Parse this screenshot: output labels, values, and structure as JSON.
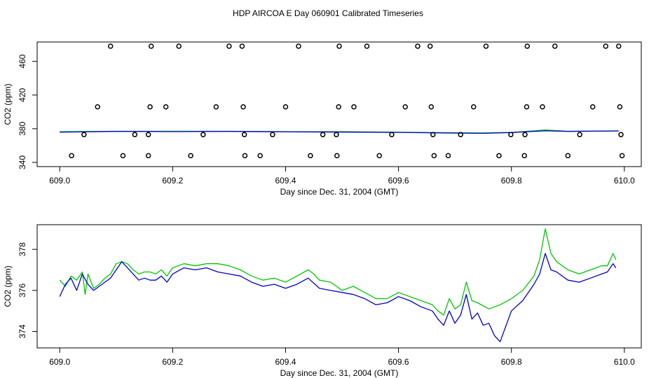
{
  "title": "HDP AIRCOA E  Day 060901  Calibrated Timeseries",
  "colors": {
    "green": "#00c800",
    "blue": "#0000d0",
    "axis": "#000000"
  },
  "chart_data": [
    {
      "type": "scatter",
      "xlabel": "Day since Dec. 31, 2004 (GMT)",
      "ylabel": "CO2 (ppm)",
      "xlim": [
        608.96,
        610.03
      ],
      "ylim": [
        335,
        483
      ],
      "xticks": [
        "609.0",
        "609.2",
        "609.4",
        "609.6",
        "609.8",
        "610.0"
      ],
      "yticks": [
        "340",
        "380",
        "420",
        "460"
      ],
      "points": [
        [
          609.09,
          478
        ],
        [
          609.162,
          478
        ],
        [
          609.211,
          478
        ],
        [
          609.3,
          478
        ],
        [
          609.323,
          478
        ],
        [
          609.423,
          478
        ],
        [
          609.495,
          478
        ],
        [
          609.544,
          478
        ],
        [
          609.634,
          478
        ],
        [
          609.656,
          478
        ],
        [
          609.755,
          478
        ],
        [
          609.828,
          478
        ],
        [
          609.877,
          478
        ],
        [
          609.967,
          478
        ],
        [
          609.99,
          478
        ],
        [
          609.067,
          406
        ],
        [
          609.16,
          406
        ],
        [
          609.188,
          406
        ],
        [
          609.277,
          406
        ],
        [
          609.325,
          406
        ],
        [
          609.4,
          406
        ],
        [
          609.494,
          406
        ],
        [
          609.521,
          406
        ],
        [
          609.612,
          406
        ],
        [
          609.658,
          406
        ],
        [
          609.733,
          406
        ],
        [
          609.827,
          406
        ],
        [
          609.855,
          406
        ],
        [
          609.944,
          406
        ],
        [
          609.992,
          406
        ],
        [
          609.043,
          373
        ],
        [
          609.133,
          373
        ],
        [
          609.157,
          373
        ],
        [
          609.254,
          373
        ],
        [
          609.327,
          373
        ],
        [
          609.377,
          373
        ],
        [
          609.466,
          373
        ],
        [
          609.49,
          373
        ],
        [
          609.588,
          373
        ],
        [
          609.661,
          373
        ],
        [
          609.71,
          373
        ],
        [
          609.799,
          373
        ],
        [
          609.824,
          373
        ],
        [
          609.921,
          373
        ],
        [
          609.994,
          373
        ],
        [
          609.021,
          348
        ],
        [
          609.112,
          348
        ],
        [
          609.157,
          348
        ],
        [
          609.232,
          348
        ],
        [
          609.328,
          348
        ],
        [
          609.355,
          348
        ],
        [
          609.444,
          348
        ],
        [
          609.491,
          348
        ],
        [
          609.566,
          348
        ],
        [
          609.663,
          348
        ],
        [
          609.688,
          348
        ],
        [
          609.778,
          348
        ],
        [
          609.823,
          348
        ],
        [
          609.9,
          348
        ],
        [
          609.996,
          348
        ]
      ],
      "series": [
        {
          "x": [
            609.0,
            609.1,
            609.2,
            609.3,
            609.4,
            609.5,
            609.6,
            609.7,
            609.75,
            609.8,
            609.86,
            609.9,
            609.99
          ],
          "values": [
            376.5,
            377.0,
            377.0,
            377.0,
            376.5,
            376.5,
            375.8,
            375.2,
            375.0,
            375.6,
            378.5,
            377.0,
            377.5
          ]
        },
        {
          "x": [
            609.0,
            609.1,
            609.2,
            609.3,
            609.4,
            609.5,
            609.6,
            609.7,
            609.75,
            609.8,
            609.86,
            609.9,
            609.99
          ],
          "values": [
            375.8,
            376.8,
            376.6,
            376.8,
            376.2,
            376.0,
            375.7,
            374.8,
            374.5,
            375.5,
            377.5,
            376.8,
            377.3
          ]
        }
      ]
    },
    {
      "type": "line",
      "xlabel": "Day since Dec. 31, 2004 (GMT)",
      "ylabel": "CO2 (ppm)",
      "xlim": [
        608.96,
        610.03
      ],
      "ylim": [
        373.2,
        379.2
      ],
      "xticks": [
        "609.0",
        "609.2",
        "609.4",
        "609.6",
        "609.8",
        "610.0"
      ],
      "yticks": [
        "374",
        "376",
        "378"
      ],
      "series": [
        {
          "x": [
            609.0,
            609.01,
            609.02,
            609.03,
            609.04,
            609.045,
            609.05,
            609.06,
            609.07,
            609.08,
            609.09,
            609.1,
            609.11,
            609.12,
            609.13,
            609.14,
            609.15,
            609.16,
            609.17,
            609.18,
            609.19,
            609.2,
            609.22,
            609.24,
            609.26,
            609.28,
            609.3,
            609.32,
            609.34,
            609.36,
            609.38,
            609.4,
            609.42,
            609.44,
            609.45,
            609.46,
            609.48,
            609.5,
            609.52,
            609.54,
            609.56,
            609.58,
            609.6,
            609.62,
            609.64,
            609.66,
            609.67,
            609.68,
            609.69,
            609.7,
            609.71,
            609.72,
            609.73,
            609.74,
            609.76,
            609.78,
            609.8,
            609.82,
            609.84,
            609.85,
            609.86,
            609.87,
            609.88,
            609.9,
            609.92,
            609.94,
            609.96,
            609.97,
            609.98,
            609.985
          ],
          "values": [
            376.5,
            376.2,
            376.7,
            376.5,
            376.9,
            375.8,
            376.8,
            376.1,
            376.3,
            376.6,
            376.8,
            377.3,
            377.4,
            377.3,
            377.0,
            376.8,
            376.9,
            376.9,
            376.8,
            377.0,
            376.7,
            377.1,
            377.3,
            377.2,
            377.3,
            377.3,
            377.2,
            377.0,
            376.7,
            376.5,
            376.6,
            376.4,
            376.7,
            377.0,
            376.8,
            376.5,
            376.4,
            376.0,
            376.2,
            375.9,
            375.6,
            375.6,
            375.9,
            375.7,
            375.5,
            375.3,
            375.0,
            374.8,
            375.6,
            375.1,
            375.3,
            376.4,
            375.5,
            375.4,
            375.1,
            375.3,
            375.6,
            376.0,
            376.7,
            377.5,
            379.0,
            377.8,
            377.4,
            377.0,
            376.8,
            377.0,
            377.2,
            377.2,
            377.8,
            377.5
          ]
        },
        {
          "x": [
            609.0,
            609.01,
            609.02,
            609.03,
            609.04,
            609.05,
            609.06,
            609.07,
            609.08,
            609.09,
            609.1,
            609.11,
            609.12,
            609.13,
            609.14,
            609.15,
            609.16,
            609.17,
            609.18,
            609.19,
            609.2,
            609.22,
            609.24,
            609.26,
            609.28,
            609.3,
            609.32,
            609.34,
            609.36,
            609.38,
            609.4,
            609.42,
            609.44,
            609.46,
            609.48,
            609.5,
            609.52,
            609.54,
            609.56,
            609.58,
            609.6,
            609.62,
            609.64,
            609.66,
            609.67,
            609.68,
            609.69,
            609.7,
            609.71,
            609.72,
            609.73,
            609.74,
            609.75,
            609.76,
            609.77,
            609.78,
            609.8,
            609.82,
            609.84,
            609.85,
            609.86,
            609.87,
            609.88,
            609.9,
            609.92,
            609.94,
            609.96,
            609.97,
            609.98,
            609.985
          ],
          "values": [
            375.7,
            376.3,
            376.6,
            376.0,
            376.8,
            376.3,
            376.0,
            376.2,
            376.4,
            376.6,
            377.0,
            377.4,
            377.1,
            376.8,
            376.5,
            376.6,
            376.5,
            376.5,
            376.7,
            376.4,
            376.8,
            377.1,
            377.0,
            377.1,
            376.9,
            376.8,
            376.7,
            376.4,
            376.2,
            376.3,
            376.1,
            376.3,
            376.6,
            376.1,
            376.0,
            375.9,
            375.8,
            375.6,
            375.3,
            375.4,
            375.7,
            375.5,
            375.2,
            375.0,
            374.6,
            374.3,
            375.0,
            374.4,
            374.8,
            375.8,
            374.6,
            374.9,
            374.3,
            374.4,
            373.8,
            373.5,
            375.0,
            375.5,
            376.3,
            376.8,
            377.8,
            377.0,
            376.9,
            376.5,
            376.4,
            376.6,
            376.8,
            376.9,
            377.3,
            377.1
          ]
        }
      ]
    }
  ]
}
